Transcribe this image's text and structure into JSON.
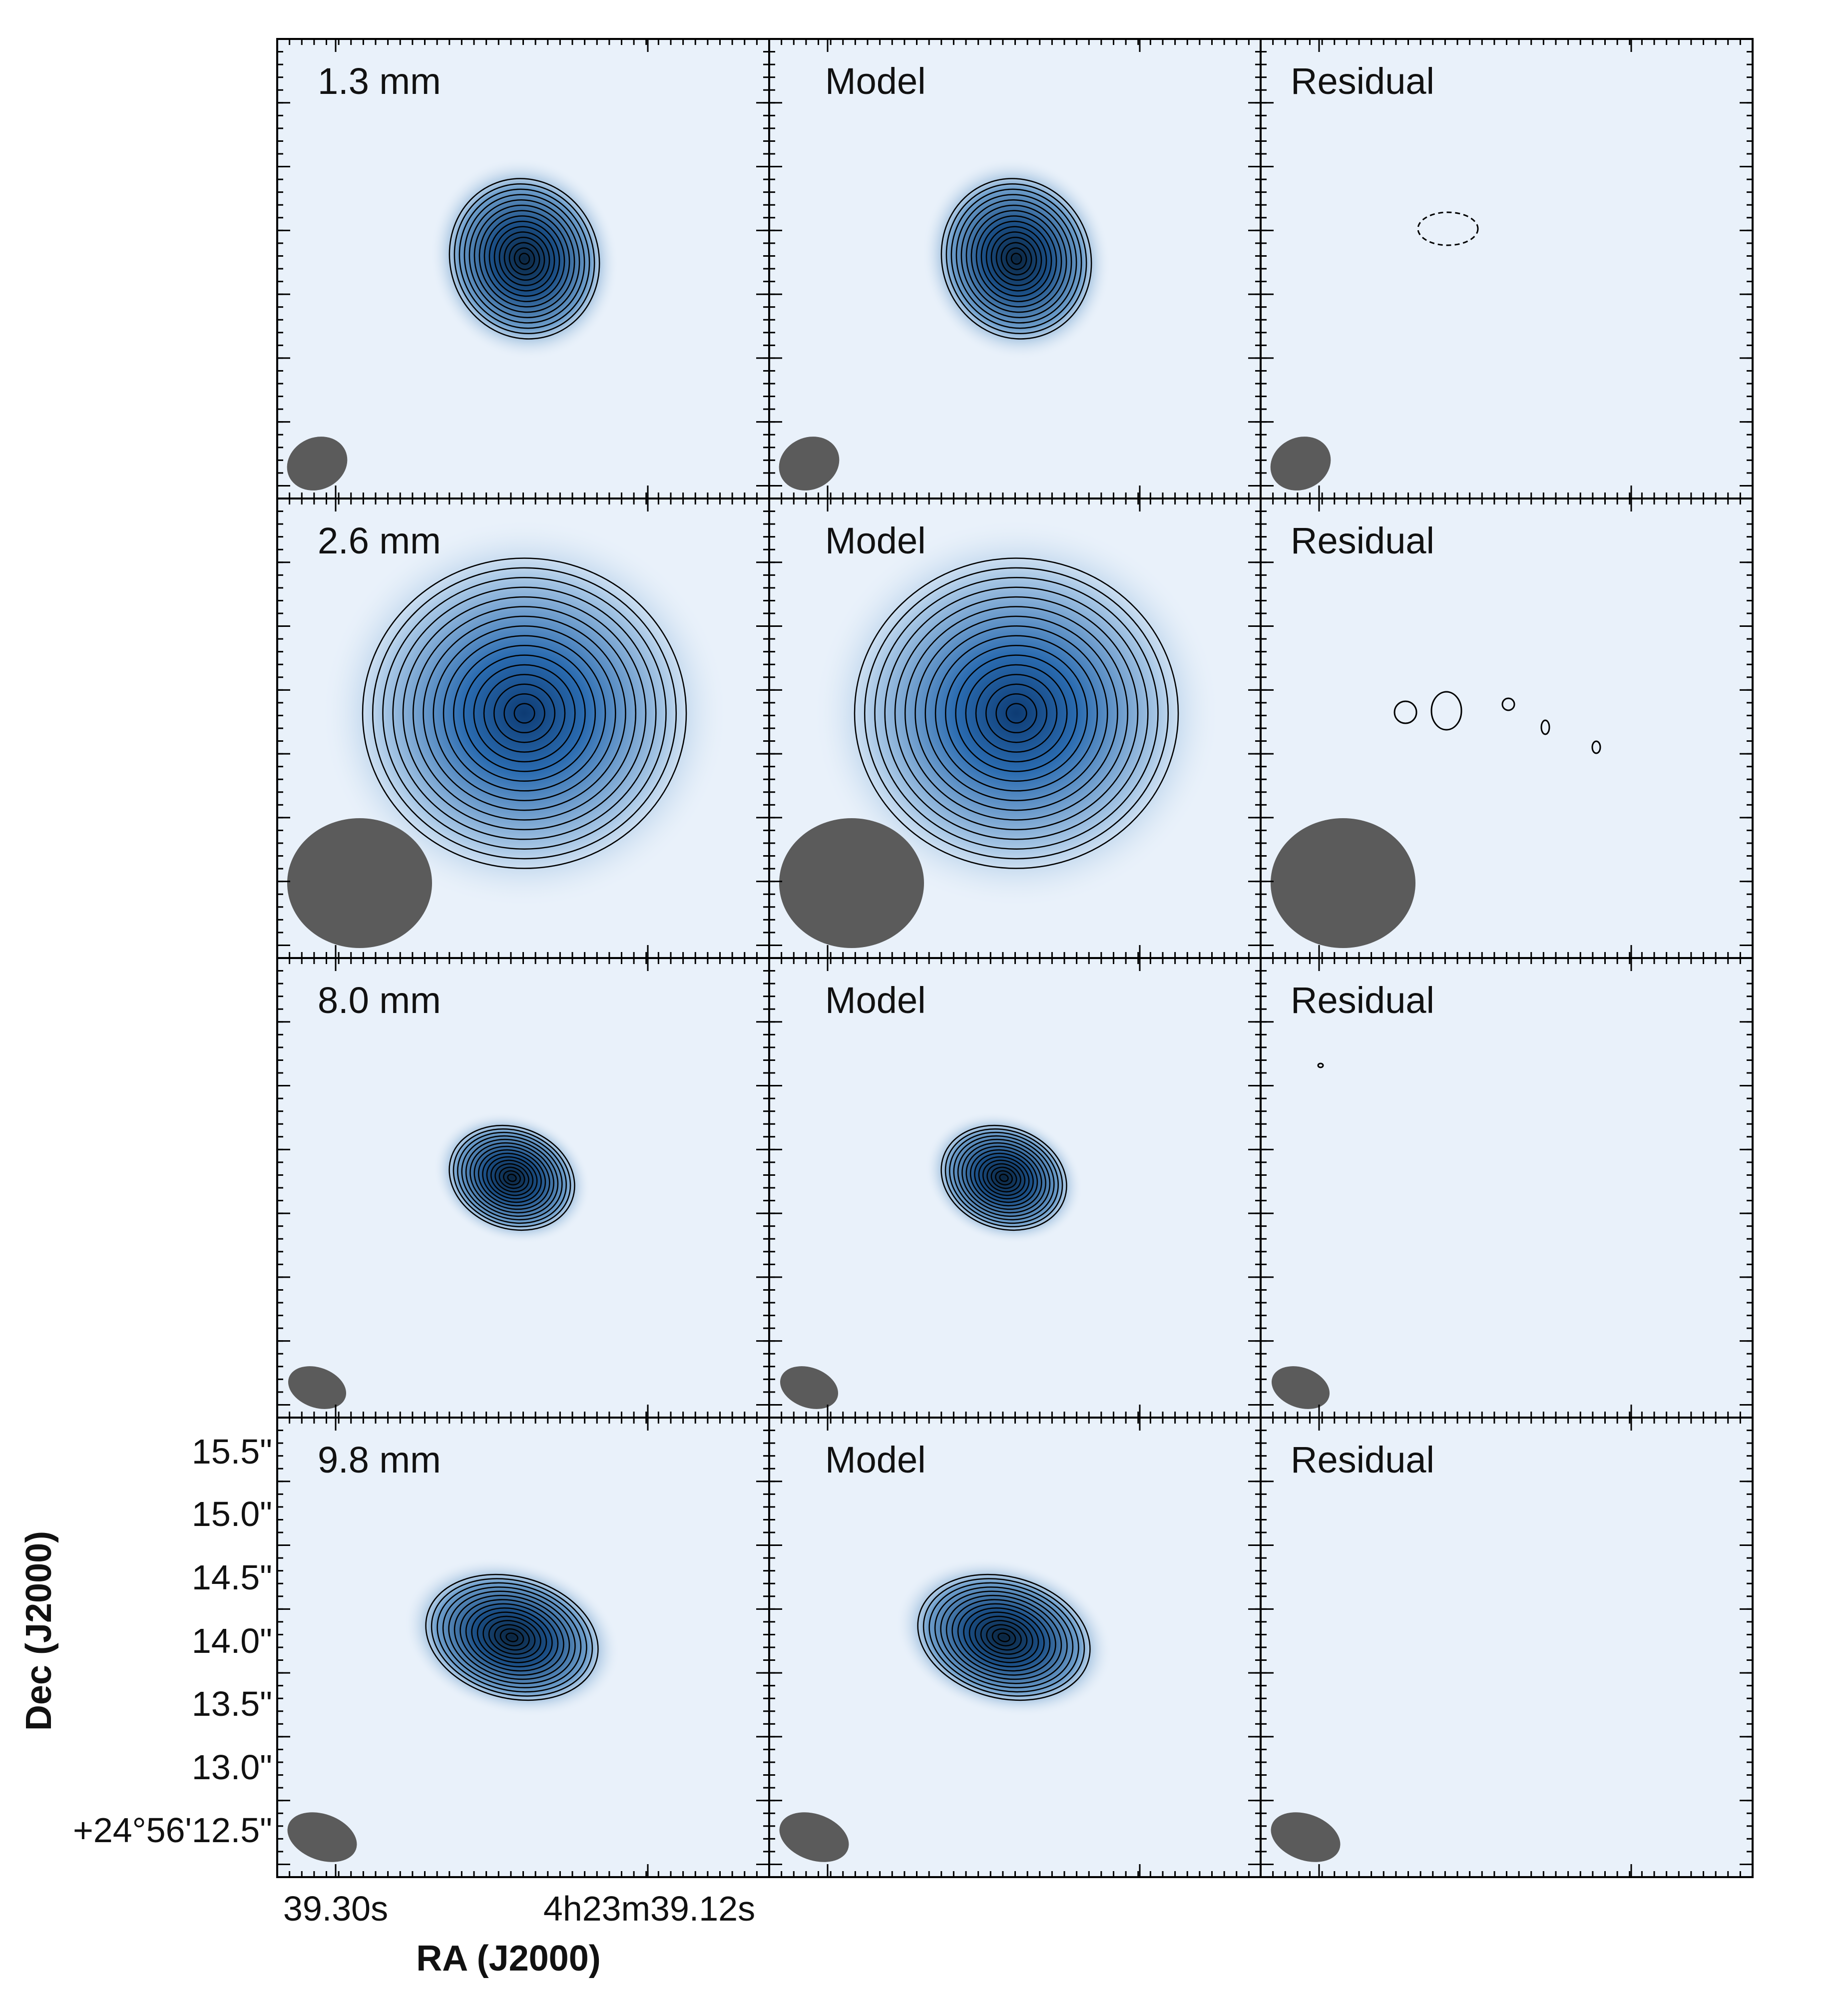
{
  "figure": {
    "row_labels": [
      "1.3 mm",
      "2.6 mm",
      "8.0 mm",
      "9.8 mm"
    ],
    "column_labels": [
      "Model",
      "Residual"
    ],
    "x_axis_title": "RA (J2000)",
    "y_axis_title": "Dec (J2000)",
    "x_tick_labels": [
      "39.30s",
      "4h23m39.12s"
    ],
    "y_tick_labels": [
      "15.5\"",
      "15.0\"",
      "14.5\"",
      "14.0\"",
      "13.5\"",
      "13.0\"",
      "+24°56'12.5\""
    ],
    "colors": {
      "background": "#e9f1fa",
      "peak_dark": "#0b2a4a",
      "peak_mid": "#1f5f9f",
      "contour": "#000000",
      "beam": "#5b5b5b",
      "frame": "#000000"
    }
  }
}
